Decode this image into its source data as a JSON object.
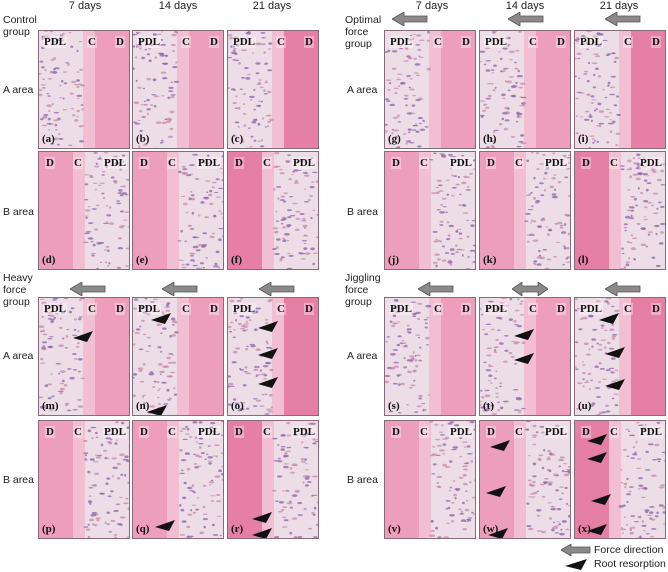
{
  "columns": [
    "7 days",
    "14 days",
    "21 days"
  ],
  "groups": [
    {
      "name": "Control group",
      "lines": [
        "Control",
        "group"
      ]
    },
    {
      "name": "Optimal force group",
      "lines": [
        "Optimal",
        "force",
        "group"
      ]
    },
    {
      "name": "Heavy force group",
      "lines": [
        "Heavy",
        "force",
        "group"
      ]
    },
    {
      "name": "Jiggling force group",
      "lines": [
        "Jiggling",
        "force",
        "group"
      ]
    }
  ],
  "areas": {
    "a": "A area",
    "b": "B area"
  },
  "tissue_labels": {
    "pdl": "PDL",
    "c": "C",
    "d": "D"
  },
  "panel_letters": [
    "(a)",
    "(b)",
    "(c)",
    "(d)",
    "(e)",
    "(f)",
    "(g)",
    "(h)",
    "(i)",
    "(j)",
    "(k)",
    "(l)",
    "(m)",
    "(n)",
    "(o)",
    "(p)",
    "(q)",
    "(r)",
    "(s)",
    "(t)",
    "(u)",
    "(v)",
    "(w)",
    "(x)"
  ],
  "legend": {
    "force_direction": "Force direction",
    "root_resorption": "Root resorption"
  },
  "colors": {
    "stain_pink": "#e48fb0",
    "stain_light": "#efc6d6",
    "pdl_purple": "#b48fbf",
    "arrow_gray": "#8a8a8a",
    "border": "#8a6a7a"
  }
}
